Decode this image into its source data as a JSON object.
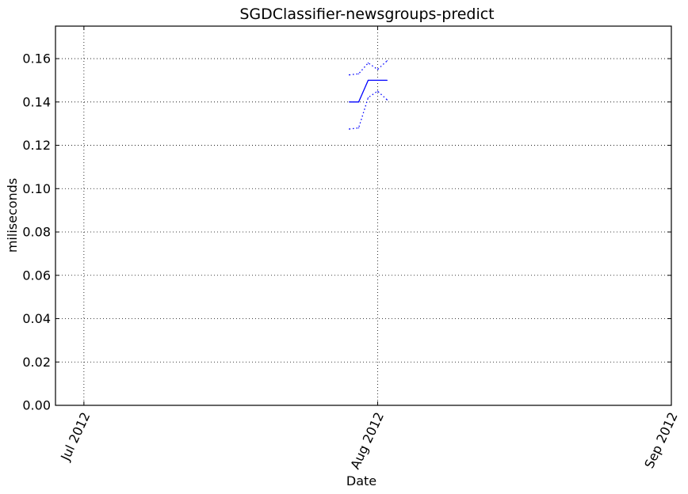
{
  "chart_data": {
    "type": "line",
    "title": "SGDClassifier-newsgroups-predict",
    "xlabel": "Date",
    "ylabel": "miliseconds",
    "x_axis_type": "date",
    "xlim": [
      "2012-06-28",
      "2012-09-01"
    ],
    "ylim": [
      0,
      0.175
    ],
    "xticks": [
      {
        "date": "2012-07-01",
        "label": "Jul 2012"
      },
      {
        "date": "2012-08-01",
        "label": "Aug 2012"
      },
      {
        "date": "2012-09-01",
        "label": "Sep 2012"
      }
    ],
    "yticks": [
      {
        "value": 0.0,
        "label": "0.00"
      },
      {
        "value": 0.02,
        "label": "0.02"
      },
      {
        "value": 0.04,
        "label": "0.04"
      },
      {
        "value": 0.06,
        "label": "0.06"
      },
      {
        "value": 0.08,
        "label": "0.08"
      },
      {
        "value": 0.1,
        "label": "0.10"
      },
      {
        "value": 0.12,
        "label": "0.12"
      },
      {
        "value": 0.14,
        "label": "0.14"
      },
      {
        "value": 0.16,
        "label": "0.16"
      }
    ],
    "grid": true,
    "series": [
      {
        "style": "solid",
        "color": "#0000ff",
        "points": [
          {
            "x": "2012-07-29",
            "y": 0.14
          },
          {
            "x": "2012-07-30",
            "y": 0.14
          },
          {
            "x": "2012-07-31",
            "y": 0.15
          },
          {
            "x": "2012-08-01",
            "y": 0.15
          },
          {
            "x": "2012-08-02",
            "y": 0.15
          }
        ]
      },
      {
        "style": "dotted",
        "color": "#0000ff",
        "points": [
          {
            "x": "2012-07-29",
            "y": 0.1525
          },
          {
            "x": "2012-07-30",
            "y": 0.153
          },
          {
            "x": "2012-07-31",
            "y": 0.158
          },
          {
            "x": "2012-08-01",
            "y": 0.155
          },
          {
            "x": "2012-08-02",
            "y": 0.159
          }
        ]
      },
      {
        "style": "dotted",
        "color": "#0000ff",
        "points": [
          {
            "x": "2012-07-29",
            "y": 0.1275
          },
          {
            "x": "2012-07-30",
            "y": 0.128
          },
          {
            "x": "2012-07-31",
            "y": 0.142
          },
          {
            "x": "2012-08-01",
            "y": 0.145
          },
          {
            "x": "2012-08-02",
            "y": 0.141
          }
        ]
      }
    ]
  }
}
